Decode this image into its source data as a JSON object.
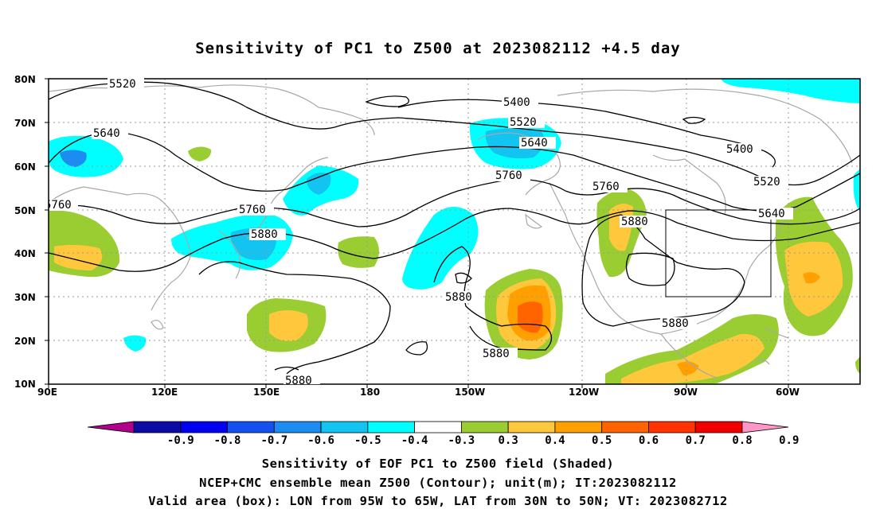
{
  "title": "Sensitivity of PC1 to Z500 at 2023082112 +4.5 day",
  "latitude_labels": [
    "80N",
    "70N",
    "60N",
    "50N",
    "40N",
    "30N",
    "20N",
    "10N"
  ],
  "longitude_labels": [
    "90E",
    "120E",
    "150E",
    "180",
    "150W",
    "120W",
    "90W",
    "60W"
  ],
  "contour_labels": [
    "5520",
    "5400",
    "5520",
    "5640",
    "5640",
    "5760",
    "5760",
    "5880",
    "5400",
    "5520",
    "5640",
    "5760",
    "5880",
    "5880",
    "5880",
    "5880",
    "5880"
  ],
  "colorbar": {
    "labels": [
      "-0.9",
      "-0.8",
      "-0.7",
      "-0.6",
      "-0.5",
      "-0.4",
      "-0.3",
      "0.3",
      "0.4",
      "0.5",
      "0.6",
      "0.7",
      "0.8",
      "0.9"
    ],
    "colors": [
      "#b0008c",
      "#0c0ca4",
      "#0000f0",
      "#1450f0",
      "#1c8cf0",
      "#14c4f0",
      "#00ffff",
      "#ffffff",
      "#9acd32",
      "#ffc83c",
      "#ffa000",
      "#ff6400",
      "#ff3200",
      "#f00000",
      "#ff96c8"
    ]
  },
  "shading_colors": {
    "neg_light": "#00ffff",
    "neg_mid": "#14c4f0",
    "neg_strong": "#1c8cf0",
    "pos_green": "#9acd32",
    "pos_yellow": "#ffc83c",
    "pos_orange": "#ffa000",
    "pos_strong": "#ff6400"
  },
  "captions": [
    "Sensitivity of EOF PC1 to Z500 field (Shaded)",
    "NCEP+CMC ensemble mean Z500 (Contour); unit(m); IT:2023082112",
    "Valid area (box): LON from 95W to 65W, LAT from 30N to 50N; VT: 2023082712"
  ]
}
